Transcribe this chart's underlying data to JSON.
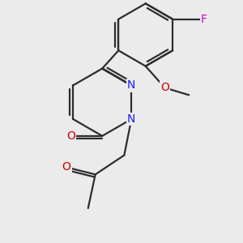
{
  "background_color": "#ebebeb",
  "bond_color": "#2d2d2d",
  "atom_colors": {
    "N": "#1a1aff",
    "O": "#cc0000",
    "F": "#cc00cc",
    "C": "#2d2d2d"
  },
  "font_size": 10,
  "lw": 1.6
}
